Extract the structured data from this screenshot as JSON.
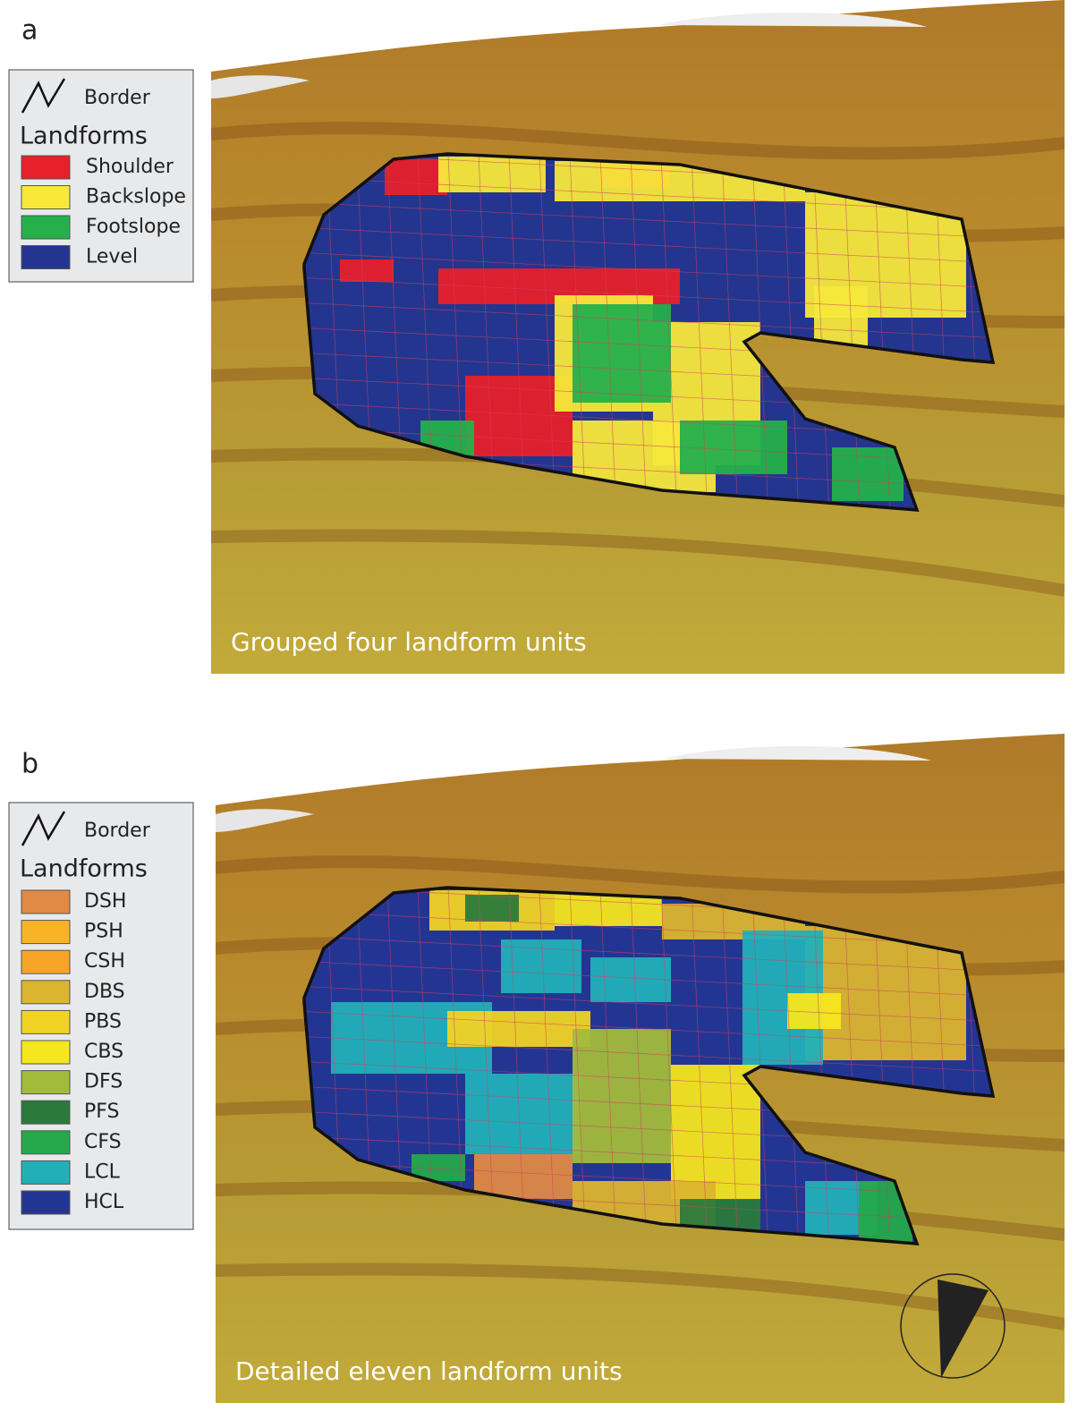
{
  "panels": [
    {
      "label": "a",
      "caption": "Grouped four landform units",
      "legend": {
        "border": "Border",
        "title": "Landforms",
        "items": [
          {
            "name": "Shoulder",
            "color": "#e8202a"
          },
          {
            "name": "Backslope",
            "color": "#f7e83a"
          },
          {
            "name": "Footslope",
            "color": "#25b04b"
          },
          {
            "name": "Level",
            "color": "#23358f"
          }
        ]
      }
    },
    {
      "label": "b",
      "caption": "Detailed eleven landform units",
      "legend": {
        "border": "Border",
        "title": "Landforms",
        "items": [
          {
            "name": "DSH",
            "color": "#e08a45"
          },
          {
            "name": "PSH",
            "color": "#f9b425"
          },
          {
            "name": "CSH",
            "color": "#f7a526"
          },
          {
            "name": "DBS",
            "color": "#dcb52e"
          },
          {
            "name": "PBS",
            "color": "#f1d324"
          },
          {
            "name": "CBS",
            "color": "#f6e61e"
          },
          {
            "name": "DFS",
            "color": "#a3bb3b"
          },
          {
            "name": "PFS",
            "color": "#2b7a3c"
          },
          {
            "name": "CFS",
            "color": "#25a94a"
          },
          {
            "name": "LCL",
            "color": "#22b0b8"
          },
          {
            "name": "HCL",
            "color": "#233593"
          }
        ]
      }
    }
  ]
}
